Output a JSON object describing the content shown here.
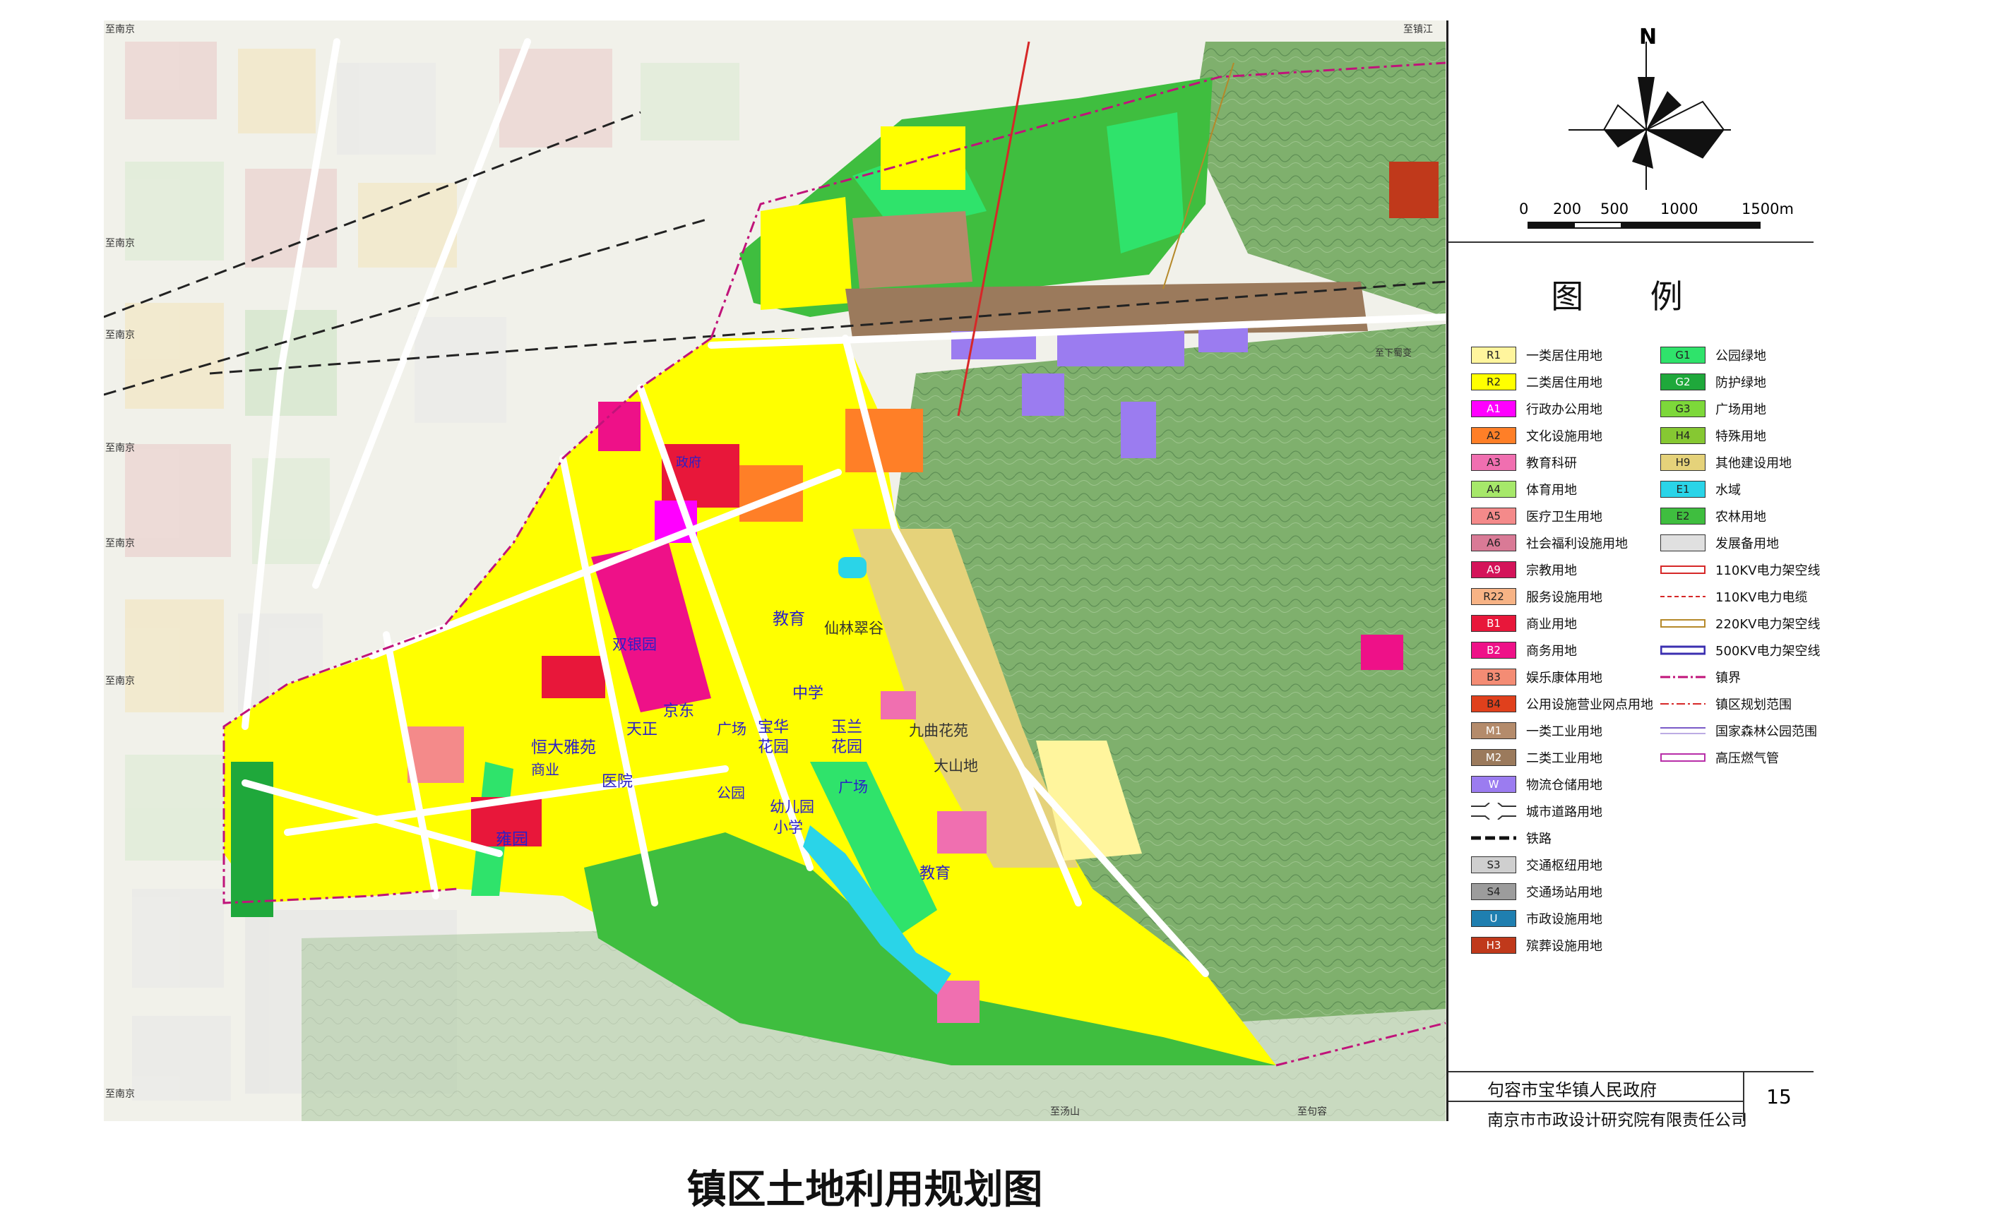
{
  "map": {
    "place_labels": [
      {
        "id": "jingdong",
        "text": "京东"
      },
      {
        "id": "tianzheng",
        "text": "天正"
      },
      {
        "id": "hengdayayuan",
        "text": "恒大雅苑"
      },
      {
        "id": "shangye",
        "text": "商业"
      },
      {
        "id": "yiyuan",
        "text": "医院"
      },
      {
        "id": "yongyuan",
        "text": "雍园"
      },
      {
        "id": "zhengfu",
        "text": "政府"
      },
      {
        "id": "shuangyinguo",
        "text": "双银园"
      },
      {
        "id": "jiaoyu1",
        "text": "教育"
      },
      {
        "id": "xianlincuigu",
        "text": "仙林翠谷"
      },
      {
        "id": "zhongxue",
        "text": "中学"
      },
      {
        "id": "guangchang1",
        "text": "广场"
      },
      {
        "id": "baohuahuayuan",
        "text": "宝华花园"
      },
      {
        "id": "yulanhuayuan",
        "text": "玉兰花园"
      },
      {
        "id": "jiuquhuayuan",
        "text": "九曲花苑"
      },
      {
        "id": "dashandi",
        "text": "大山地"
      },
      {
        "id": "gongyuan",
        "text": "公园"
      },
      {
        "id": "youeryuan",
        "text": "幼儿园"
      },
      {
        "id": "xiaoxue",
        "text": "小学"
      },
      {
        "id": "guangchang2",
        "text": "广场"
      },
      {
        "id": "jiaoyu2",
        "text": "教育"
      }
    ],
    "edge_labels": [
      "至南京",
      "至南京",
      "至南京",
      "至南京",
      "至南京",
      "至南京",
      "至南京",
      "至镇江",
      "至下蜀变",
      "至汤山",
      "至句容"
    ]
  },
  "compass": {
    "north_label": "N"
  },
  "scale_bar": {
    "labels": [
      "0",
      "200",
      "500",
      "1000",
      "1500m"
    ]
  },
  "legend": {
    "title": "图  例",
    "left_items": [
      {
        "code": "R1",
        "label": "一类居住用地",
        "color": "#fff59d"
      },
      {
        "code": "R2",
        "label": "二类居住用地",
        "color": "#ffff00"
      },
      {
        "code": "A1",
        "label": "行政办公用地",
        "color": "#ff00ff"
      },
      {
        "code": "A2",
        "label": "文化设施用地",
        "color": "#ff7f27"
      },
      {
        "code": "A3",
        "label": "教育科研",
        "color": "#f06fb0"
      },
      {
        "code": "A4",
        "label": "体育用地",
        "color": "#a6e86a"
      },
      {
        "code": "A5",
        "label": "医疗卫生用地",
        "color": "#f48a8a"
      },
      {
        "code": "A6",
        "label": "社会福利设施用地",
        "color": "#d97a96"
      },
      {
        "code": "A9",
        "label": "宗教用地",
        "color": "#d4145a"
      },
      {
        "code": "R22",
        "label": "服务设施用地",
        "color": "#f7b385"
      },
      {
        "code": "B1",
        "label": "商业用地",
        "color": "#e8173a"
      },
      {
        "code": "B2",
        "label": "商务用地",
        "color": "#ee1188"
      },
      {
        "code": "B3",
        "label": "娱乐康体用地",
        "color": "#f48c74"
      },
      {
        "code": "B4",
        "label": "公用设施营业网点用地",
        "color": "#e0401c"
      },
      {
        "code": "M1",
        "label": "一类工业用地",
        "color": "#b48b6b"
      },
      {
        "code": "M2",
        "label": "二类工业用地",
        "color": "#9b7a5c"
      },
      {
        "code": "W",
        "label": "物流仓储用地",
        "color": "#9b7cf0"
      },
      {
        "code": "",
        "label": "城市道路用地",
        "color": "#ffffff"
      },
      {
        "code": "",
        "label": "铁路",
        "color": "#ffffff"
      },
      {
        "code": "S3",
        "label": "交通枢纽用地",
        "color": "#cfcfcf"
      },
      {
        "code": "S4",
        "label": "交通场站用地",
        "color": "#9c9c9c"
      },
      {
        "code": "U",
        "label": "市政设施用地",
        "color": "#1f7fb0"
      },
      {
        "code": "H3",
        "label": "殡葬设施用地",
        "color": "#c0391b"
      }
    ],
    "right_items": [
      {
        "code": "G1",
        "label": "公园绿地",
        "color": "#2fe36b"
      },
      {
        "code": "G2",
        "label": "防护绿地",
        "color": "#1fa83b"
      },
      {
        "code": "G3",
        "label": "广场用地",
        "color": "#7dd83a"
      },
      {
        "code": "H4",
        "label": "特殊用地",
        "color": "#86c832"
      },
      {
        "code": "H9",
        "label": "其他建设用地",
        "color": "#e5d27a"
      },
      {
        "code": "E1",
        "label": "水域",
        "color": "#2ad4e8"
      },
      {
        "code": "E2",
        "label": "农林用地",
        "color": "#3fbe3f"
      },
      {
        "code": "",
        "label": "发展备用地",
        "color": "#e0e0e0"
      },
      {
        "code": "",
        "label": "110KV电力架空线",
        "color": "#d62828",
        "style": "solid"
      },
      {
        "code": "",
        "label": "110KV电力电缆",
        "color": "#d62828",
        "style": "dashed"
      },
      {
        "code": "",
        "label": "220KV电力架空线",
        "color": "#b5892a",
        "style": "solid"
      },
      {
        "code": "",
        "label": "500KV电力架空线",
        "color": "#3b2fb0",
        "style": "solid"
      },
      {
        "code": "",
        "label": "镇界",
        "color": "#c0137a",
        "style": "dashdot"
      },
      {
        "code": "",
        "label": "镇区规划范围",
        "color": "#d62828",
        "style": "dashdot"
      },
      {
        "code": "",
        "label": "国家森林公园范围",
        "color": "#7a5ac8",
        "style": "double"
      },
      {
        "code": "",
        "label": "高压燃气管",
        "color": "#b82ea8",
        "style": "solid"
      }
    ]
  },
  "footer": {
    "org_line1": "句容市宝华镇人民政府",
    "org_line2": "南京市市政设计研究院有限责任公司",
    "page_number": "15"
  },
  "caption": "镇区土地利用规划图"
}
